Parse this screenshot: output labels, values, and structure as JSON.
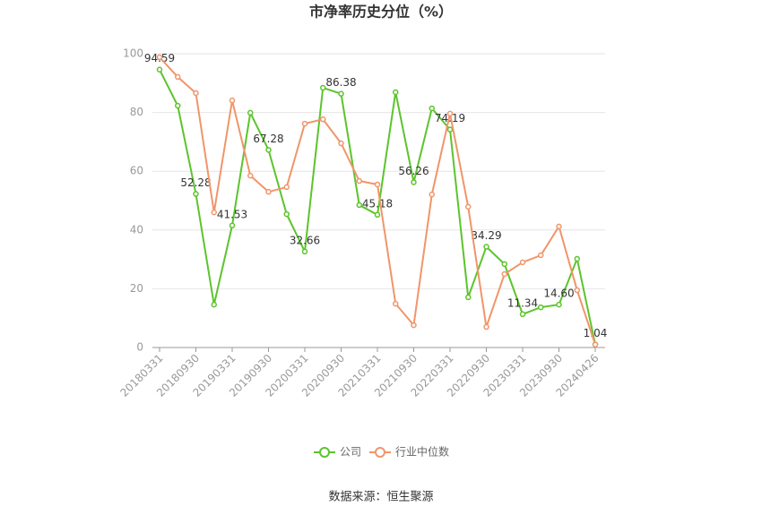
{
  "chart_data": {
    "type": "line",
    "title": "市净率历史分位（%）",
    "source": "数据来源：恒生聚源",
    "categories": [
      "20180331",
      null,
      "20180930",
      null,
      "20190331",
      null,
      "20190930",
      null,
      "20200331",
      null,
      "20200930",
      null,
      "20210331",
      null,
      "20210930",
      null,
      "20220331",
      null,
      "20220930",
      null,
      "20230331",
      null,
      "20230930",
      null,
      "20240426"
    ],
    "series": [
      {
        "name": "公司",
        "color": "#5cc42c",
        "values": [
          94.59,
          82.3,
          52.28,
          14.6,
          41.53,
          79.9,
          67.28,
          45.4,
          32.66,
          88.4,
          86.38,
          48.5,
          45.18,
          86.9,
          56.26,
          81.4,
          74.19,
          17.1,
          34.29,
          28.4,
          11.34,
          13.7,
          14.6,
          30.2,
          1.04
        ],
        "value_labels": [
          "94.59",
          null,
          "52.28",
          null,
          "41.53",
          null,
          "67.28",
          null,
          "32.66",
          null,
          "86.38",
          null,
          "45.18",
          null,
          "56.26",
          null,
          "74.19",
          null,
          "34.29",
          null,
          "11.34",
          null,
          "14.60",
          null,
          "1.04"
        ]
      },
      {
        "name": "行业中位数",
        "color": "#f0956a",
        "values": [
          98.8,
          92.1,
          86.6,
          46.0,
          84.1,
          58.5,
          53.0,
          54.6,
          76.2,
          77.7,
          69.5,
          56.7,
          55.5,
          14.9,
          7.6,
          52.1,
          79.6,
          47.9,
          7.0,
          25.0,
          29.0,
          31.4,
          41.2,
          19.5,
          1.0
        ]
      }
    ],
    "ylim": [
      0,
      100
    ],
    "yticks": [
      0,
      20,
      40,
      60,
      80,
      100
    ],
    "grid": true
  }
}
